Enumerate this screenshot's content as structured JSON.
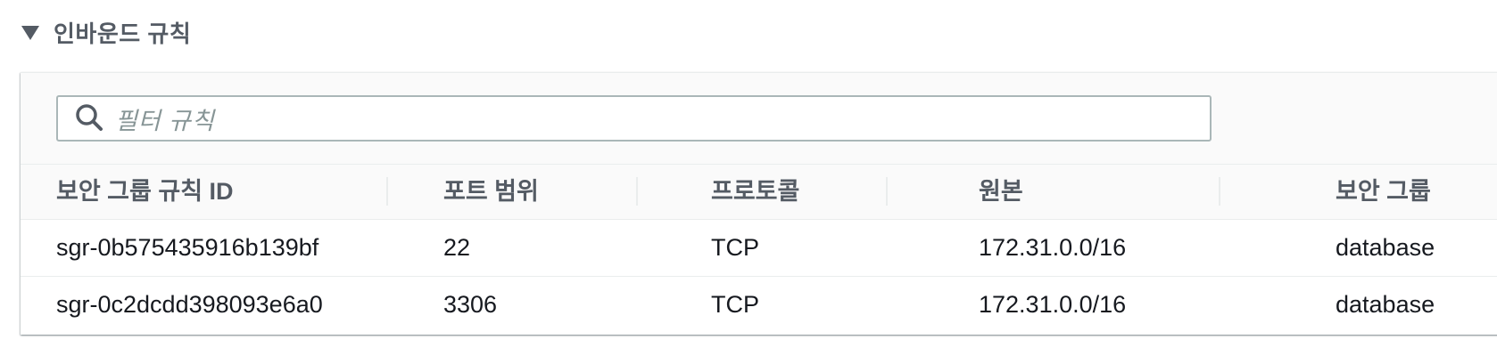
{
  "section": {
    "title": "인바운드 규칙",
    "expanded": true
  },
  "filter": {
    "placeholder": "필터 규칙",
    "icon": "search-icon"
  },
  "table": {
    "columns": [
      "보안 그룹 규칙 ID",
      "포트 범위",
      "프로토콜",
      "원본",
      "보안 그룹"
    ],
    "rows": [
      {
        "rule_id": "sgr-0b575435916b139bf",
        "port_range": "22",
        "protocol": "TCP",
        "source": "172.31.0.0/16",
        "security_group": "database"
      },
      {
        "rule_id": "sgr-0c2dcdd398093e6a0",
        "port_range": "3306",
        "protocol": "TCP",
        "source": "172.31.0.0/16",
        "security_group": "database"
      }
    ]
  },
  "colors": {
    "header_text": "#545b64",
    "body_text": "#16191f",
    "border": "#aab7b8",
    "placeholder": "#879596"
  }
}
